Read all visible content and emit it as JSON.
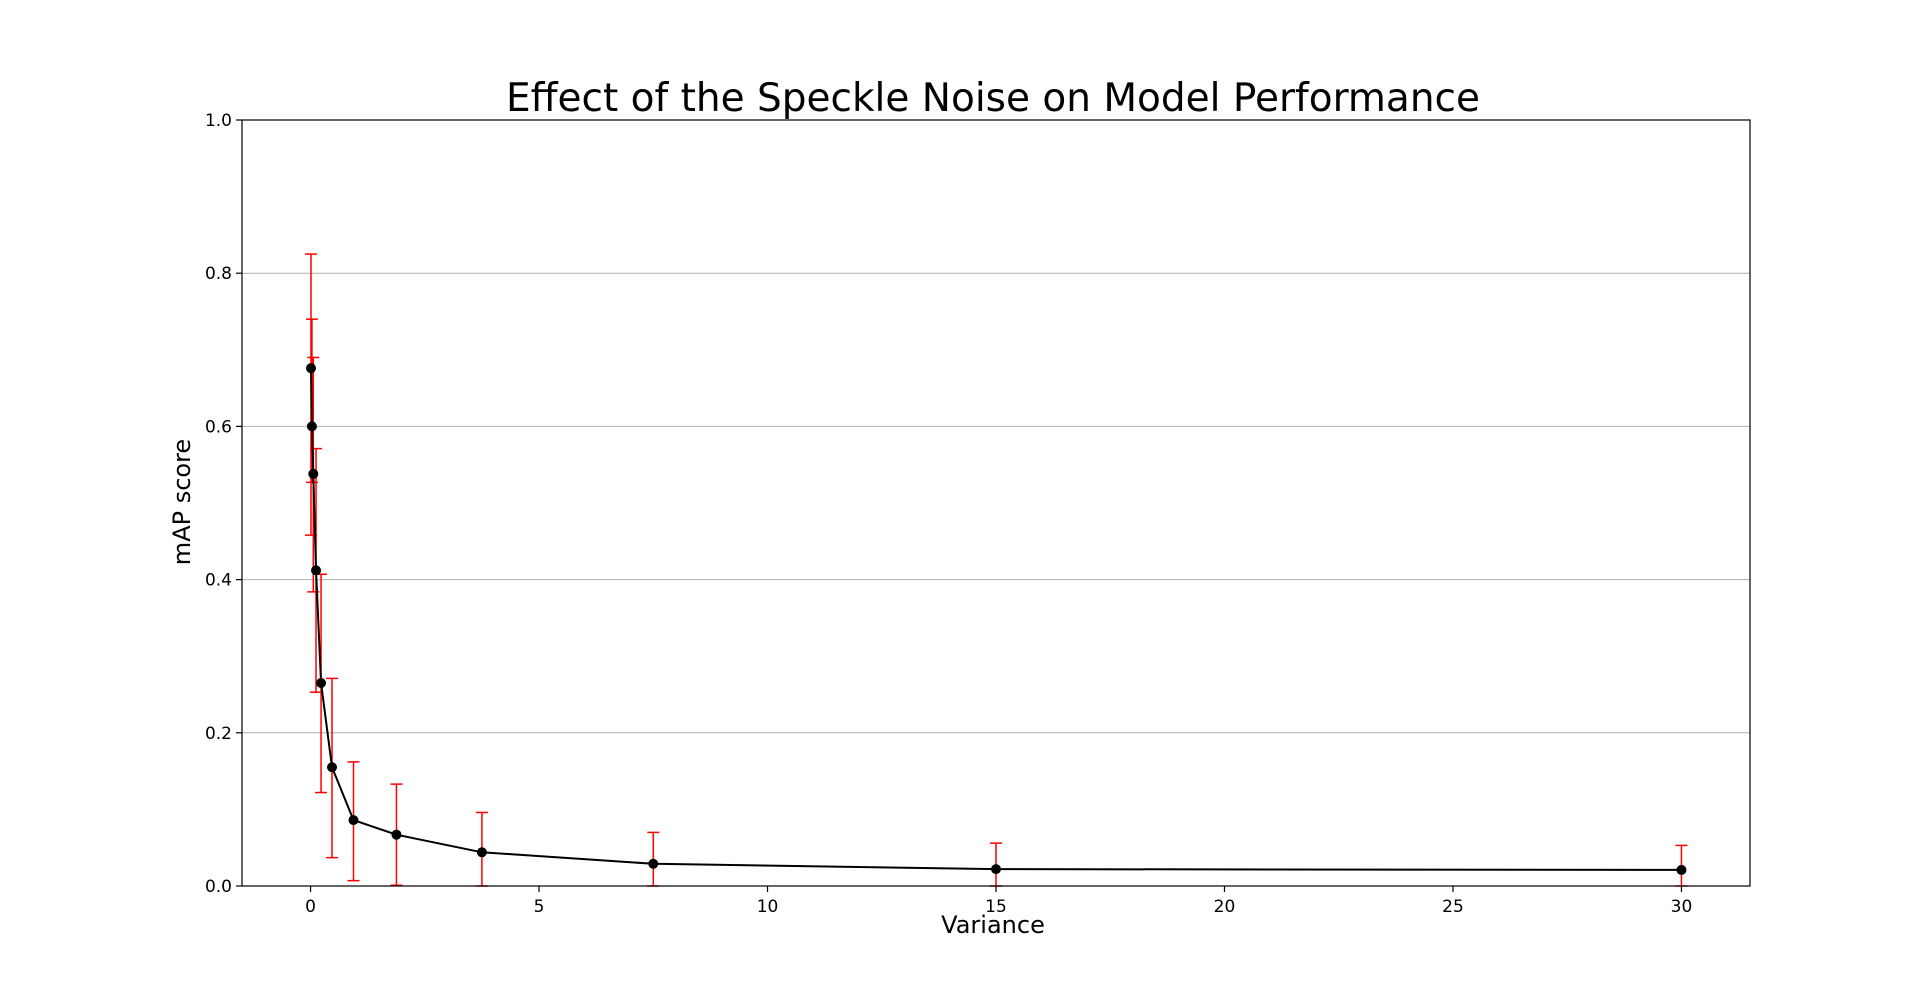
{
  "chart_data": {
    "type": "line",
    "title": "Effect of the Speckle Noise on Model Performance",
    "xlabel": "Variance",
    "ylabel": "mAP score",
    "xlim": [
      -1.5,
      31.5
    ],
    "ylim": [
      0.0,
      1.0
    ],
    "xticks": [
      0,
      5,
      10,
      15,
      20,
      25,
      30
    ],
    "yticks": [
      0.0,
      0.2,
      0.4,
      0.6,
      0.8,
      1.0
    ],
    "xtick_labels": [
      "0",
      "5",
      "10",
      "15",
      "20",
      "25",
      "30"
    ],
    "ytick_labels": [
      "0.0",
      "0.2",
      "0.4",
      "0.6",
      "0.8",
      "1.0"
    ],
    "grid": "horizontal",
    "line_color": "#000000",
    "marker_color": "#000000",
    "errorbar_color": "#ff0000",
    "series": [
      {
        "x": [
          0.01,
          0.03,
          0.06,
          0.12,
          0.23,
          0.47,
          0.94,
          1.88,
          3.75,
          7.5,
          15.0,
          30.0
        ],
        "y": [
          0.676,
          0.6,
          0.538,
          0.412,
          0.265,
          0.155,
          0.086,
          0.067,
          0.044,
          0.029,
          0.022,
          0.021
        ],
        "err_low": [
          0.458,
          0.527,
          0.384,
          0.253,
          0.122,
          0.037,
          0.007,
          0.001,
          0.0,
          0.0,
          0.0,
          0.0
        ],
        "err_high": [
          0.825,
          0.74,
          0.69,
          0.571,
          0.407,
          0.271,
          0.162,
          0.133,
          0.096,
          0.07,
          0.056,
          0.053
        ]
      }
    ]
  }
}
